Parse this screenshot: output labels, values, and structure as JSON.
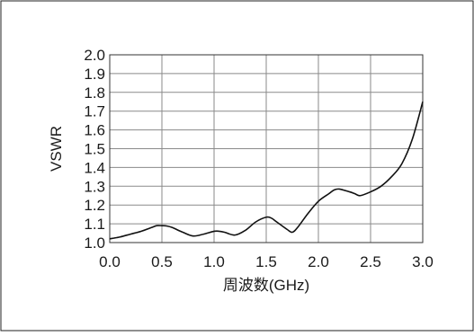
{
  "chart_data": {
    "type": "line",
    "xlabel": "周波数(GHz)",
    "ylabel": "VSWR",
    "xlim": [
      0.0,
      3.0
    ],
    "ylim": [
      1.0,
      2.0
    ],
    "x_ticks": [
      "0.0",
      "0.5",
      "1.0",
      "1.5",
      "2.0",
      "2.5",
      "3.0"
    ],
    "y_ticks": [
      "1.0",
      "1.1",
      "1.2",
      "1.3",
      "1.4",
      "1.5",
      "1.6",
      "1.7",
      "1.8",
      "1.9",
      "2.0"
    ],
    "grid": true,
    "series": [
      {
        "x": [
          0.0,
          0.1,
          0.2,
          0.3,
          0.4,
          0.45,
          0.5,
          0.55,
          0.6,
          0.7,
          0.8,
          0.9,
          1.0,
          1.05,
          1.1,
          1.2,
          1.3,
          1.4,
          1.5,
          1.55,
          1.6,
          1.7,
          1.75,
          1.8,
          1.9,
          2.0,
          2.1,
          2.15,
          2.2,
          2.3,
          2.35,
          2.4,
          2.5,
          2.6,
          2.7,
          2.8,
          2.9,
          3.0
        ],
        "y": [
          1.02,
          1.03,
          1.045,
          1.06,
          1.08,
          1.09,
          1.09,
          1.088,
          1.08,
          1.055,
          1.035,
          1.045,
          1.06,
          1.06,
          1.055,
          1.04,
          1.065,
          1.11,
          1.135,
          1.13,
          1.11,
          1.07,
          1.055,
          1.08,
          1.155,
          1.22,
          1.26,
          1.28,
          1.285,
          1.27,
          1.26,
          1.25,
          1.27,
          1.3,
          1.35,
          1.42,
          1.55,
          1.75
        ]
      }
    ]
  }
}
